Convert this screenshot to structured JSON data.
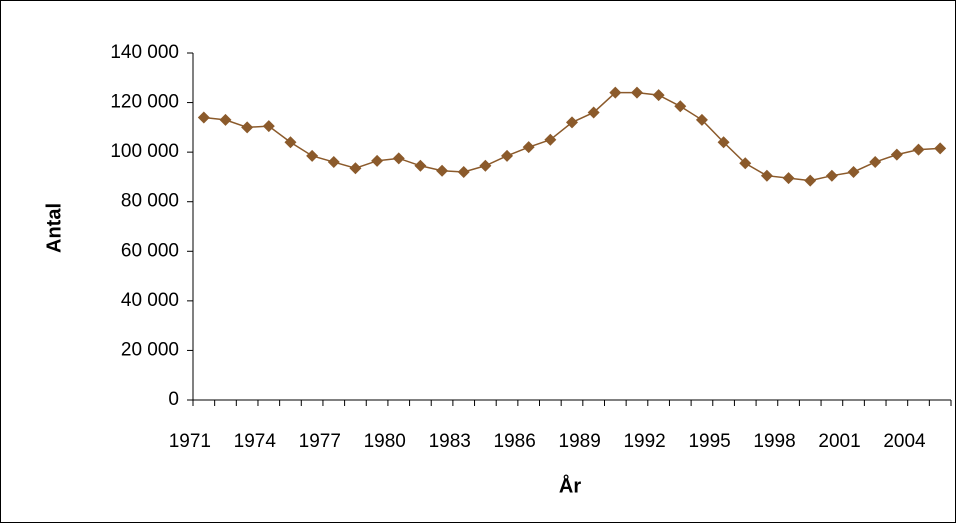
{
  "chart_data": {
    "type": "line",
    "x_label": "År",
    "y_label": "Antal",
    "categories": [
      "1971",
      null,
      null,
      "1974",
      null,
      null,
      "1977",
      null,
      null,
      "1980",
      null,
      null,
      "1983",
      null,
      null,
      "1986",
      null,
      null,
      "1989",
      null,
      null,
      "1992",
      null,
      null,
      "1995",
      null,
      null,
      "1998",
      null,
      null,
      "2001",
      null,
      null,
      "2004",
      null
    ],
    "series": [
      {
        "color": "#8b5a2b",
        "values": [
          114000,
          113000,
          110000,
          110500,
          104000,
          98500,
          96000,
          93500,
          96500,
          97500,
          94500,
          92500,
          92000,
          94500,
          98500,
          102000,
          105000,
          112000,
          116000,
          124000,
          124000,
          123000,
          118500,
          113000,
          104000,
          95500,
          90500,
          89500,
          88500,
          90500,
          92000,
          96000,
          99000,
          101000,
          101500
        ]
      }
    ],
    "ylim": [
      0,
      140000
    ],
    "yticks": [
      0,
      {
        "value": 20000,
        "label": "20 000"
      },
      {
        "value": 40000,
        "label": "40 000"
      },
      {
        "value": 60000,
        "label": "60 000"
      },
      {
        "value": 80000,
        "label": "80 000"
      },
      {
        "value": 100000,
        "label": "100 000"
      },
      {
        "value": 120000,
        "label": "120 000"
      },
      {
        "value": 140000,
        "label": "140 000"
      }
    ],
    "grid": false
  }
}
